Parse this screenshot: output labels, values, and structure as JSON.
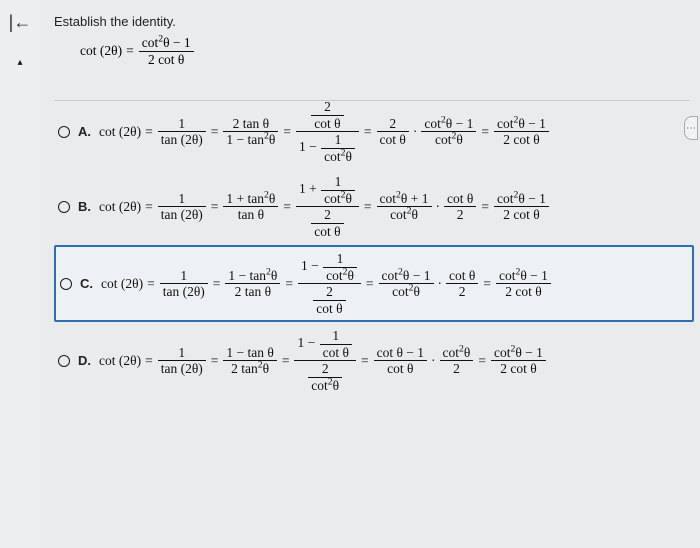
{
  "prompt": "Establish the identity.",
  "icons": {
    "back": "|←",
    "up": "▴"
  },
  "colors": {
    "select_border": "#2d6fb0",
    "bg": "#e9ebec"
  },
  "identity": {
    "lhs": "cot (2θ)",
    "rhs_num": "cot<sup>2</sup>θ − 1",
    "rhs_den": "2 cot θ"
  },
  "options": [
    {
      "label": "A.",
      "selected": false,
      "start": "cot (2θ)",
      "chain": [
        {
          "num": "1",
          "den": "tan (2θ)"
        },
        {
          "num": "2 tan θ",
          "den": "1 − tan<sup>2</sup>θ"
        },
        {
          "compound": {
            "outer_num": {
              "num": "2",
              "den": "cot θ"
            },
            "outer_den_pre": "1 −",
            "outer_den_frac": {
              "num": "1",
              "den": "cot<sup>2</sup>θ"
            }
          }
        },
        {
          "pair": [
            {
              "num": "2",
              "den": "cot θ"
            },
            {
              "num": "cot<sup>2</sup>θ − 1",
              "den": "cot<sup>2</sup>θ"
            }
          ]
        },
        {
          "num": "cot<sup>2</sup>θ − 1",
          "den": "2 cot θ"
        }
      ]
    },
    {
      "label": "B.",
      "selected": false,
      "start": "cot (2θ)",
      "chain": [
        {
          "num": "1",
          "den": "tan (2θ)"
        },
        {
          "num": "1 + tan<sup>2</sup>θ",
          "den": "tan θ"
        },
        {
          "compound": {
            "outer_num_pre": "1 +",
            "outer_num_frac": {
              "num": "1",
              "den": "cot<sup>2</sup>θ"
            },
            "outer_den": {
              "num": "2",
              "den": "cot θ"
            }
          }
        },
        {
          "pair": [
            {
              "num": "cot<sup>2</sup>θ + 1",
              "den": "cot<sup>2</sup>θ"
            },
            {
              "num": "cot θ",
              "den": "2"
            }
          ]
        },
        {
          "num": "cot<sup>2</sup>θ − 1",
          "den": "2 cot θ"
        }
      ]
    },
    {
      "label": "C.",
      "selected": true,
      "start": "cot (2θ)",
      "chain": [
        {
          "num": "1",
          "den": "tan (2θ)"
        },
        {
          "num": "1 − tan<sup>2</sup>θ",
          "den": "2 tan θ"
        },
        {
          "compound": {
            "outer_num_pre": "1 −",
            "outer_num_frac": {
              "num": "1",
              "den": "cot<sup>2</sup>θ"
            },
            "outer_den": {
              "num": "2",
              "den": "cot θ"
            }
          }
        },
        {
          "pair": [
            {
              "num": "cot<sup>2</sup>θ − 1",
              "den": "cot<sup>2</sup>θ"
            },
            {
              "num": "cot θ",
              "den": "2"
            }
          ]
        },
        {
          "num": "cot<sup>2</sup>θ − 1",
          "den": "2 cot θ"
        }
      ]
    },
    {
      "label": "D.",
      "selected": false,
      "start": "cot (2θ)",
      "chain": [
        {
          "num": "1",
          "den": "tan (2θ)"
        },
        {
          "num": "1 − tan θ",
          "den": "2 tan<sup>2</sup>θ"
        },
        {
          "compound": {
            "outer_num_pre": "1 −",
            "outer_num_frac": {
              "num": "1",
              "den": "cot θ"
            },
            "outer_den": {
              "num": "2",
              "den": "cot<sup>2</sup>θ"
            }
          }
        },
        {
          "pair": [
            {
              "num": "cot θ − 1",
              "den": "cot θ"
            },
            {
              "num": "cot<sup>2</sup>θ",
              "den": "2"
            }
          ]
        },
        {
          "num": "cot<sup>2</sup>θ − 1",
          "den": "2 cot θ"
        }
      ]
    }
  ]
}
